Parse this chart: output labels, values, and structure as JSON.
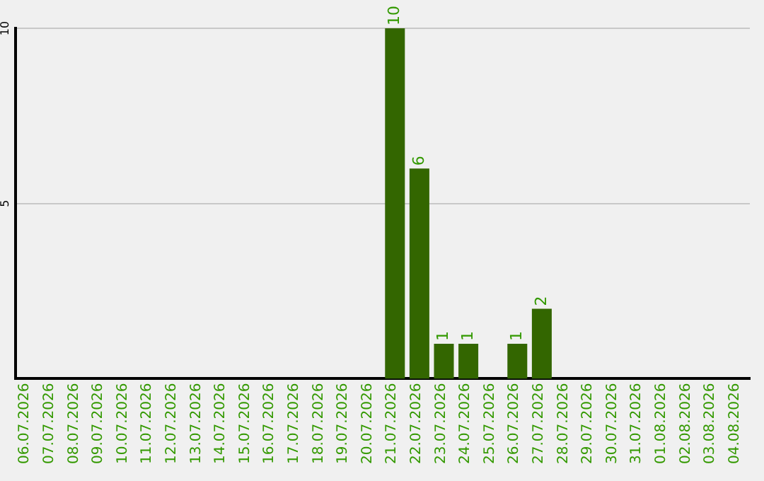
{
  "chart_data": {
    "type": "bar",
    "categories": [
      "06.07.2026",
      "07.07.2026",
      "08.07.2026",
      "09.07.2026",
      "10.07.2026",
      "11.07.2026",
      "12.07.2026",
      "13.07.2026",
      "14.07.2026",
      "15.07.2026",
      "16.07.2026",
      "17.07.2026",
      "18.07.2026",
      "19.07.2026",
      "20.07.2026",
      "21.07.2026",
      "22.07.2026",
      "23.07.2026",
      "24.07.2026",
      "25.07.2026",
      "26.07.2026",
      "27.07.2026",
      "28.07.2026",
      "29.07.2026",
      "30.07.2026",
      "31.07.2026",
      "01.08.2026",
      "02.08.2026",
      "03.08.2026",
      "04.08.2026"
    ],
    "values": [
      0,
      0,
      0,
      0,
      0,
      0,
      0,
      0,
      0,
      0,
      0,
      0,
      0,
      0,
      0,
      10,
      6,
      1,
      1,
      0,
      1,
      2,
      0,
      0,
      0,
      0,
      0,
      0,
      0,
      0
    ],
    "value_labels": [
      null,
      null,
      null,
      null,
      null,
      null,
      null,
      null,
      null,
      null,
      null,
      null,
      null,
      null,
      null,
      "10",
      "6",
      "1",
      "1",
      null,
      "1",
      "2",
      null,
      null,
      null,
      null,
      null,
      null,
      null,
      null
    ],
    "color": "#336600",
    "ylim": [
      0,
      10
    ],
    "yticks": [
      5,
      10
    ],
    "grid": "y",
    "legend": false
  }
}
